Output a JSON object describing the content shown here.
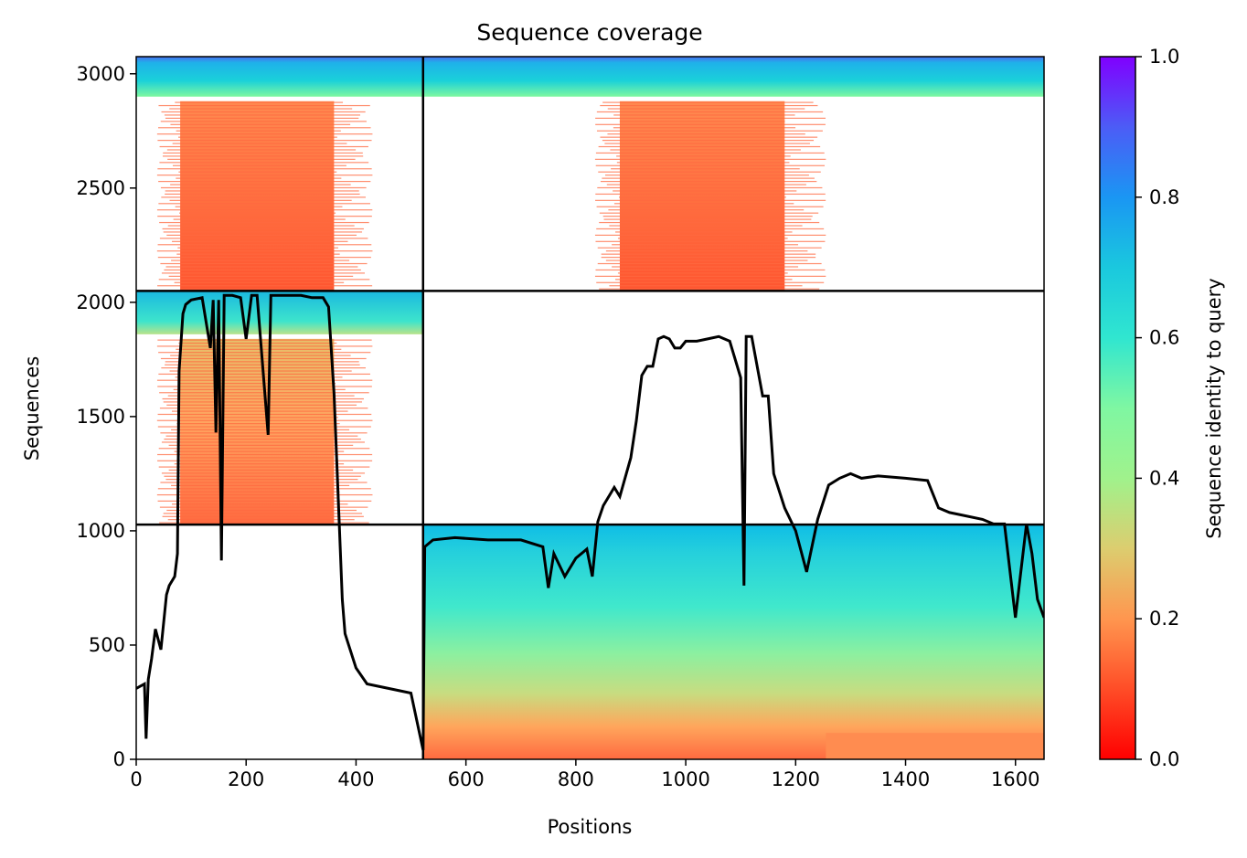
{
  "chart_data": {
    "type": "heatmap",
    "title": "Sequence coverage",
    "xlabel": "Positions",
    "ylabel": "Sequences",
    "xlim": [
      0,
      1652
    ],
    "ylim": [
      0,
      3075
    ],
    "xticks": [
      0,
      200,
      400,
      600,
      800,
      1000,
      1200,
      1400,
      1600
    ],
    "yticks": [
      0,
      500,
      1000,
      1500,
      2000,
      2500,
      3000
    ],
    "grid": false,
    "colorbar": {
      "label": "Sequence identity to query",
      "range": [
        0,
        1
      ],
      "ticks": [
        "0.0",
        "0.2",
        "0.4",
        "0.6",
        "0.8",
        "1.0"
      ],
      "colormap": "rainbow_r"
    },
    "block_boundaries": {
      "x": [
        522
      ],
      "y": [
        1027,
        2050
      ]
    },
    "blocks": [
      {
        "x": [
          0,
          522
        ],
        "y": [
          2050,
          3075
        ],
        "high_identity_rows": [
          2900,
          3075
        ],
        "aligned_span": [
          80,
          360
        ],
        "identity": [
          0.1,
          0.7
        ]
      },
      {
        "x": [
          522,
          1652
        ],
        "y": [
          2050,
          3075
        ],
        "high_identity_rows": [
          2900,
          3075
        ],
        "aligned_span": [
          880,
          1180
        ],
        "identity": [
          0.1,
          0.7
        ]
      },
      {
        "x": [
          0,
          522
        ],
        "y": [
          1027,
          2050
        ],
        "high_identity_rows": [
          1860,
          2050
        ],
        "aligned_span": [
          80,
          360
        ],
        "identity": [
          0.1,
          0.7
        ]
      },
      {
        "x": [
          522,
          1652
        ],
        "y": [
          0,
          1027
        ],
        "high_identity_rows": [
          0,
          1027
        ],
        "aligned_span": [
          522,
          1652
        ],
        "identity": [
          0.1,
          0.8
        ]
      }
    ],
    "coverage_series": {
      "x": [
        0,
        15,
        18,
        22,
        28,
        35,
        45,
        55,
        60,
        70,
        75,
        78,
        85,
        90,
        100,
        120,
        135,
        140,
        145,
        150,
        155,
        160,
        175,
        190,
        200,
        210,
        220,
        240,
        245,
        250,
        260,
        280,
        300,
        320,
        340,
        350,
        360,
        370,
        375,
        380,
        400,
        420,
        440,
        460,
        480,
        500,
        522,
        525,
        540,
        580,
        640,
        700,
        740,
        750,
        760,
        780,
        800,
        820,
        830,
        840,
        850,
        860,
        870,
        880,
        900,
        910,
        920,
        930,
        940,
        950,
        960,
        970,
        980,
        990,
        1000,
        1020,
        1040,
        1060,
        1080,
        1100,
        1106,
        1110,
        1120,
        1140,
        1150,
        1160,
        1180,
        1200,
        1220,
        1240,
        1260,
        1280,
        1300,
        1320,
        1350,
        1400,
        1440,
        1460,
        1480,
        1500,
        1540,
        1560,
        1580,
        1600,
        1620,
        1630,
        1640,
        1652
      ],
      "y": [
        310,
        330,
        90,
        350,
        440,
        570,
        480,
        720,
        760,
        800,
        900,
        1700,
        1950,
        1990,
        2010,
        2020,
        1800,
        2010,
        1430,
        2010,
        870,
        2030,
        2030,
        2020,
        1840,
        2030,
        2030,
        1420,
        2030,
        2030,
        2030,
        2030,
        2030,
        2020,
        2020,
        1980,
        1600,
        1000,
        700,
        550,
        400,
        330,
        320,
        310,
        300,
        290,
        40,
        930,
        960,
        970,
        960,
        960,
        930,
        750,
        900,
        800,
        880,
        920,
        800,
        1040,
        1110,
        1150,
        1190,
        1150,
        1320,
        1480,
        1680,
        1720,
        1720,
        1840,
        1850,
        1840,
        1800,
        1800,
        1830,
        1830,
        1840,
        1850,
        1830,
        1670,
        760,
        1850,
        1850,
        1590,
        1590,
        1250,
        1100,
        1000,
        820,
        1050,
        1200,
        1230,
        1250,
        1230,
        1240,
        1230,
        1220,
        1100,
        1080,
        1070,
        1050,
        1030,
        1030,
        620,
        1030,
        900,
        700,
        620
      ]
    }
  }
}
